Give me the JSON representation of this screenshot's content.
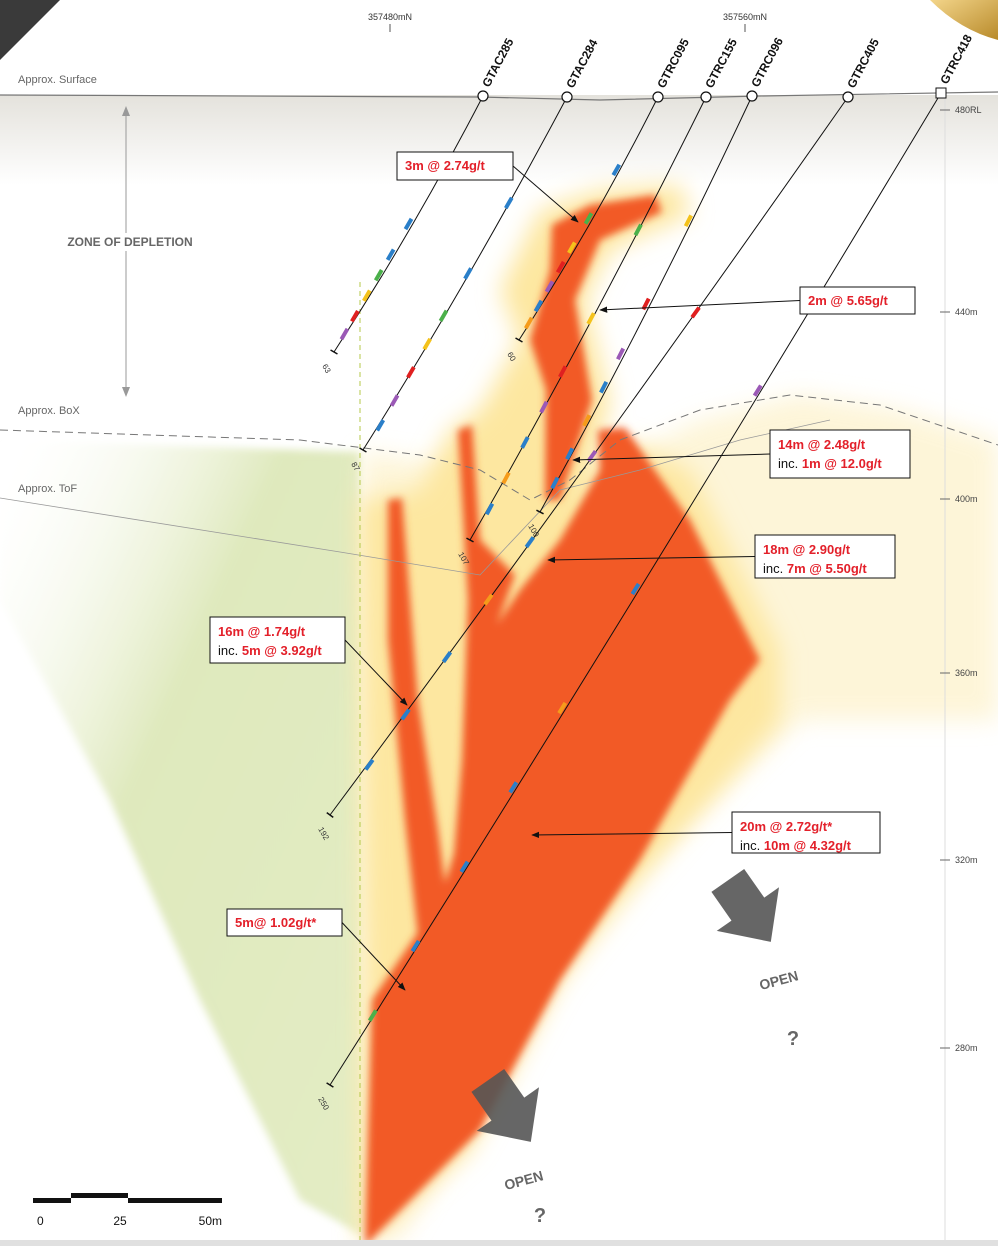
{
  "grid_labels": [
    "357480mN",
    "357560mN"
  ],
  "surface_labels": {
    "surface": "Approx. Surface",
    "box": "Approx. BoX",
    "tof": "Approx. ToF"
  },
  "zone_label": "ZONE OF DEPLETION",
  "rl_labels": [
    "480RL",
    "440m",
    "400m",
    "360m",
    "320m",
    "280m"
  ],
  "drillholes": [
    {
      "name": "GTAC285",
      "depth": 63
    },
    {
      "name": "GTAC284",
      "depth": 87
    },
    {
      "name": "GTRC095",
      "depth": 60
    },
    {
      "name": "GTRC155",
      "depth": 107
    },
    {
      "name": "GTRC096",
      "depth": 100
    },
    {
      "name": "GTRC405",
      "depth": 192
    },
    {
      "name": "GTRC418",
      "depth": 250
    }
  ],
  "intercepts": [
    {
      "main": "3m @ 2.74g/t"
    },
    {
      "main": "2m @ 5.65g/t"
    },
    {
      "main": "14m @ 2.48g/t",
      "inc_prefix": "inc.",
      "inc": "1m @ 12.0g/t"
    },
    {
      "main": "18m @ 2.90g/t",
      "inc_prefix": "inc.",
      "inc": "7m @ 5.50g/t"
    },
    {
      "main": "16m @ 1.74g/t",
      "inc_prefix": "inc.",
      "inc": "5m @ 3.92g/t"
    },
    {
      "main": "20m @ 2.72g/t*",
      "inc_prefix": "inc.",
      "inc": "10m @ 4.32g/t"
    },
    {
      "main": "5m@ 1.02g/t*"
    }
  ],
  "open_labels": [
    "OPEN",
    "OPEN"
  ],
  "question_marks": [
    "?",
    "?"
  ],
  "scale_bar": [
    "0",
    "25",
    "50m"
  ]
}
